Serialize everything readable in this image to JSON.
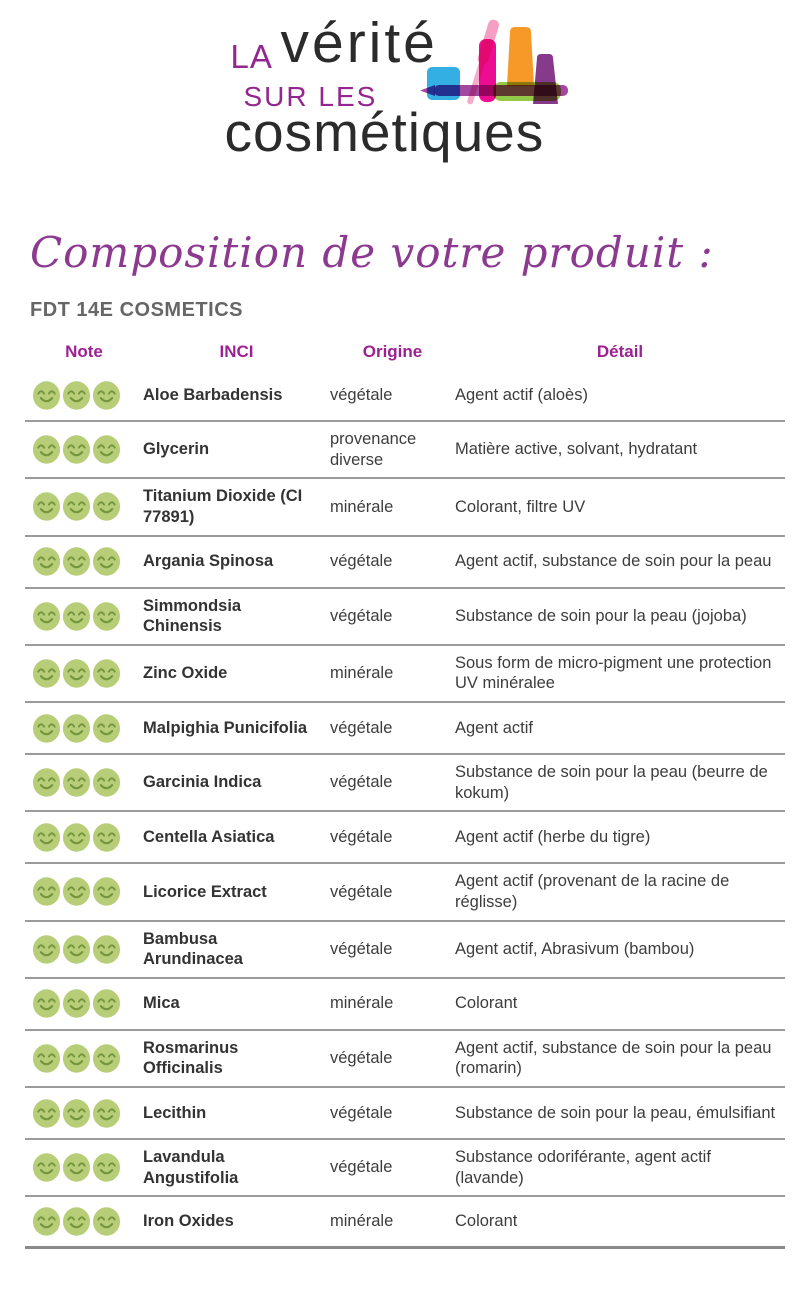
{
  "logo": {
    "la": "LA",
    "verite": "vérité",
    "sur_les": "SUR LES",
    "cosmetiques": "cosmétiques"
  },
  "page": {
    "heading": "Composition de votre produit :",
    "product_name": "FDT 14E COSMETICS"
  },
  "table": {
    "headers": [
      "Note",
      "INCI",
      "Origine",
      "Détail"
    ],
    "note_icon": "smiley-happy",
    "note_max": 3,
    "rows": [
      {
        "note": 3,
        "inci": "Aloe Barbadensis",
        "origine": "végétale",
        "detail": "Agent actif (aloès)"
      },
      {
        "note": 3,
        "inci": "Glycerin",
        "origine": "provenance diverse",
        "detail": "Matière active, solvant, hydratant"
      },
      {
        "note": 3,
        "inci": "Titanium Dioxide (CI 77891)",
        "origine": "minérale",
        "detail": "Colorant, filtre UV"
      },
      {
        "note": 3,
        "inci": "Argania Spinosa",
        "origine": "végétale",
        "detail": "Agent actif, substance de soin pour la peau"
      },
      {
        "note": 3,
        "inci": "Simmondsia Chinensis",
        "origine": "végétale",
        "detail": "Substance de soin pour la peau (jojoba)"
      },
      {
        "note": 3,
        "inci": "Zinc Oxide",
        "origine": "minérale",
        "detail": "Sous form de micro-pigment une protection UV minéralee"
      },
      {
        "note": 3,
        "inci": "Malpighia Punicifolia",
        "origine": "végétale",
        "detail": "Agent actif"
      },
      {
        "note": 3,
        "inci": "Garcinia Indica",
        "origine": "végétale",
        "detail": "Substance de soin pour la peau (beurre de kokum)"
      },
      {
        "note": 3,
        "inci": "Centella Asiatica",
        "origine": "végétale",
        "detail": "Agent actif (herbe du tigre)"
      },
      {
        "note": 3,
        "inci": "Licorice Extract",
        "origine": "végétale",
        "detail": "Agent actif (provenant de la racine de réglisse)"
      },
      {
        "note": 3,
        "inci": "Bambusa Arundinacea",
        "origine": "végétale",
        "detail": "Agent actif, Abrasivum (bambou)"
      },
      {
        "note": 3,
        "inci": "Mica",
        "origine": "minérale",
        "detail": "Colorant"
      },
      {
        "note": 3,
        "inci": "Rosmarinus Officinalis",
        "origine": "végétale",
        "detail": "Agent actif, substance de soin pour la peau (romarin)"
      },
      {
        "note": 3,
        "inci": "Lecithin",
        "origine": "végétale",
        "detail": "Substance de soin pour la peau, émulsifiant"
      },
      {
        "note": 3,
        "inci": "Lavandula Angustifolia",
        "origine": "végétale",
        "detail": "Substance odoriférante, agent actif (lavande)"
      },
      {
        "note": 3,
        "inci": "Iron Oxides",
        "origine": "minérale",
        "detail": "Colorant"
      }
    ]
  },
  "colors": {
    "accent_purple": "#93278f",
    "header_magenta": "#9c2191",
    "heading_script_purple": "#8b3a8f",
    "smiley_fill": "#b7cd78",
    "smiley_features": "#75953f",
    "row_border": "#9b9b9b",
    "logo_blue": "#29abe2",
    "logo_pink": "#f49ac1",
    "logo_magenta": "#ec008c",
    "logo_orange": "#f7941e",
    "logo_green": "#8dc63f",
    "logo_dark_purple": "#7b2982"
  }
}
